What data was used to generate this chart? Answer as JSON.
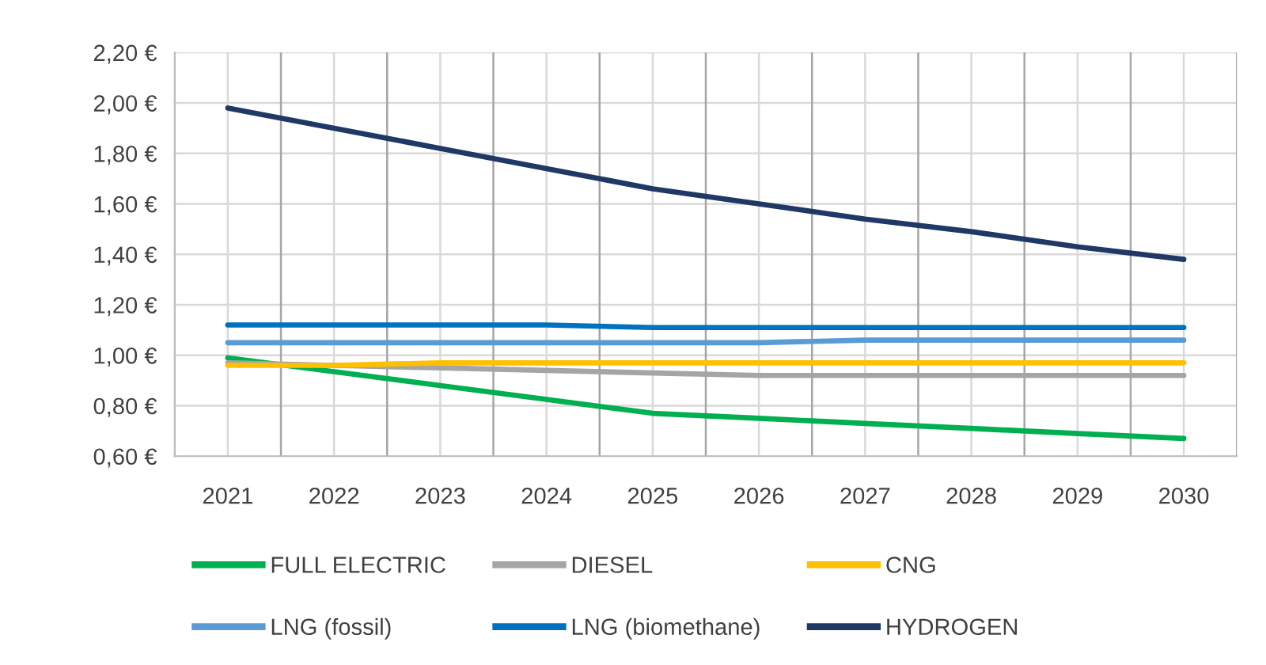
{
  "chart_data": {
    "type": "line",
    "categories": [
      "2021",
      "2022",
      "2023",
      "2024",
      "2025",
      "2026",
      "2027",
      "2028",
      "2029",
      "2030"
    ],
    "series": [
      {
        "name": "FULL ELECTRIC",
        "color": "#00b050",
        "values": [
          0.99,
          0.935,
          0.88,
          0.825,
          0.77,
          0.75,
          0.73,
          0.71,
          0.69,
          0.67
        ]
      },
      {
        "name": "DIESEL",
        "color": "#a5a5a5",
        "values": [
          0.97,
          0.96,
          0.95,
          0.94,
          0.93,
          0.92,
          0.92,
          0.92,
          0.92,
          0.92
        ]
      },
      {
        "name": "CNG",
        "color": "#ffc000",
        "values": [
          0.96,
          0.96,
          0.97,
          0.97,
          0.97,
          0.97,
          0.97,
          0.97,
          0.97,
          0.97
        ]
      },
      {
        "name": "LNG (fossil)",
        "color": "#5b9bd5",
        "values": [
          1.05,
          1.05,
          1.05,
          1.05,
          1.05,
          1.05,
          1.06,
          1.06,
          1.06,
          1.06
        ]
      },
      {
        "name": "LNG (biomethane)",
        "color": "#0070c0",
        "values": [
          1.12,
          1.12,
          1.12,
          1.12,
          1.11,
          1.11,
          1.11,
          1.11,
          1.11,
          1.11
        ]
      },
      {
        "name": "HYDROGEN",
        "color": "#203864",
        "values": [
          1.98,
          1.9,
          1.82,
          1.74,
          1.66,
          1.6,
          1.54,
          1.49,
          1.43,
          1.38
        ]
      }
    ],
    "ylim": [
      0.6,
      2.2
    ],
    "yticks": [
      {
        "value": 0.6,
        "label": "0,60 €"
      },
      {
        "value": 0.8,
        "label": "0,80 €"
      },
      {
        "value": 1.0,
        "label": "1,00 €"
      },
      {
        "value": 1.2,
        "label": "1,20 €"
      },
      {
        "value": 1.4,
        "label": "1,40 €"
      },
      {
        "value": 1.6,
        "label": "1,60 €"
      },
      {
        "value": 1.8,
        "label": "1,80 €"
      },
      {
        "value": 2.0,
        "label": "2,00 €"
      },
      {
        "value": 2.2,
        "label": "2,20 €"
      }
    ],
    "grid": true,
    "legend": "bottom",
    "marker": "none",
    "line_style": "solid"
  }
}
